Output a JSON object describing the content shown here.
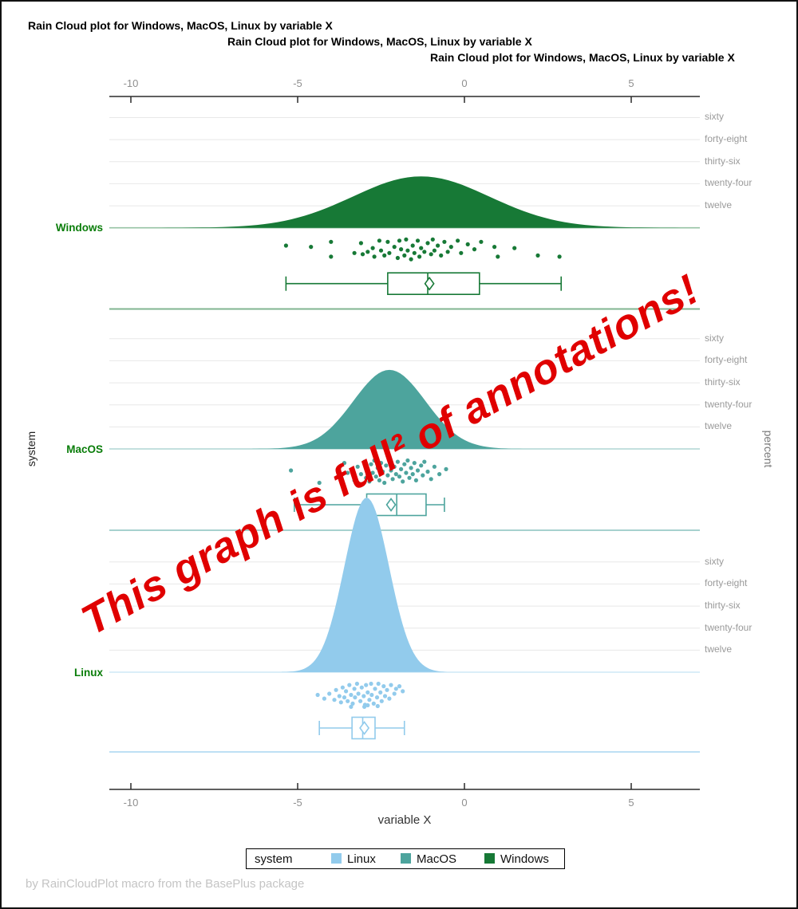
{
  "titles": [
    "Rain Cloud plot for Windows, MacOS, Linux by variable X",
    "Rain Cloud plot for Windows, MacOS, Linux by variable X",
    "Rain Cloud plot for Windows, MacOS, Linux by variable X"
  ],
  "annotation": {
    "text": "This graph is full² of annotations!",
    "color": "#e00000"
  },
  "axes": {
    "x_label": "variable X",
    "y_label_left": "system",
    "y_label_right": "percent"
  },
  "legend": {
    "title": "system",
    "items": [
      {
        "label": "Linux",
        "color": "#92cbec"
      },
      {
        "label": "MacOS",
        "color": "#4da49d"
      },
      {
        "label": "Windows",
        "color": "#177936"
      }
    ]
  },
  "footnote": "by RainCloudPlot macro from the BasePlus package",
  "chart_data": {
    "type": "raincloud",
    "title": "Rain Cloud plot for Windows, MacOS, Linux by variable X",
    "xlabel": "variable X",
    "ylabel_left": "system",
    "ylabel_right": "percent",
    "x_ticks": [
      -10,
      -5,
      0,
      5
    ],
    "x_range_visible": [
      -10.65,
      7.05
    ],
    "percent_gridlines": [
      12,
      24,
      36,
      48,
      60
    ],
    "percent_tick_labels": [
      "twelve",
      "twenty-four",
      "thirty-six",
      "forty-eight",
      "sixty"
    ],
    "grid_on": true,
    "legend_position": "bottom",
    "groups": [
      {
        "name": "Windows",
        "color": "#177936",
        "density": {
          "mean": -1.3,
          "sd": 2.05,
          "peak_percent": 28
        },
        "box": {
          "min": -5.35,
          "q1": -2.3,
          "median": -1.1,
          "q3": 0.45,
          "max": 2.9,
          "mean": -1.05
        },
        "points": [
          [
            -5.35,
            0.3
          ],
          [
            -4.6,
            0.35
          ],
          [
            -4.0,
            0.15
          ],
          [
            -4.0,
            0.75
          ],
          [
            -3.3,
            0.6
          ],
          [
            -3.1,
            0.2
          ],
          [
            -3.05,
            0.65
          ],
          [
            -2.9,
            0.55
          ],
          [
            -2.75,
            0.4
          ],
          [
            -2.7,
            0.75
          ],
          [
            -2.55,
            0.1
          ],
          [
            -2.5,
            0.5
          ],
          [
            -2.4,
            0.7
          ],
          [
            -2.3,
            0.15
          ],
          [
            -2.25,
            0.6
          ],
          [
            -2.1,
            0.35
          ],
          [
            -2.0,
            0.8
          ],
          [
            -1.95,
            0.1
          ],
          [
            -1.9,
            0.45
          ],
          [
            -1.8,
            0.7
          ],
          [
            -1.75,
            0.05
          ],
          [
            -1.7,
            0.5
          ],
          [
            -1.6,
            0.85
          ],
          [
            -1.55,
            0.3
          ],
          [
            -1.5,
            0.6
          ],
          [
            -1.4,
            0.1
          ],
          [
            -1.35,
            0.75
          ],
          [
            -1.3,
            0.4
          ],
          [
            -1.2,
            0.55
          ],
          [
            -1.1,
            0.2
          ],
          [
            -1.0,
            0.65
          ],
          [
            -0.95,
            0.05
          ],
          [
            -0.9,
            0.5
          ],
          [
            -0.8,
            0.3
          ],
          [
            -0.7,
            0.7
          ],
          [
            -0.6,
            0.15
          ],
          [
            -0.5,
            0.55
          ],
          [
            -0.4,
            0.35
          ],
          [
            -0.2,
            0.1
          ],
          [
            -0.1,
            0.6
          ],
          [
            0.1,
            0.25
          ],
          [
            0.3,
            0.45
          ],
          [
            0.5,
            0.15
          ],
          [
            0.9,
            0.35
          ],
          [
            1.0,
            0.75
          ],
          [
            1.5,
            0.4
          ],
          [
            2.2,
            0.7
          ],
          [
            2.85,
            0.75
          ]
        ]
      },
      {
        "name": "MacOS",
        "color": "#4da49d",
        "density": {
          "mean": -2.25,
          "sd": 1.08,
          "peak_percent": 43
        },
        "box": {
          "min": -5.1,
          "q1": -2.93,
          "median": -2.03,
          "q3": -1.15,
          "max": -0.6,
          "mean": -2.2
        },
        "points": [
          [
            -5.2,
            0.45
          ],
          [
            -4.35,
            0.95
          ],
          [
            -3.6,
            0.15
          ],
          [
            -3.5,
            0.55
          ],
          [
            -3.3,
            0.85
          ],
          [
            -3.2,
            0.3
          ],
          [
            -3.1,
            0.6
          ],
          [
            -3.0,
            0.1
          ],
          [
            -2.95,
            0.75
          ],
          [
            -2.9,
            0.4
          ],
          [
            -2.85,
            0.9
          ],
          [
            -2.8,
            0.2
          ],
          [
            -2.75,
            0.55
          ],
          [
            -2.7,
            0.05
          ],
          [
            -2.65,
            0.7
          ],
          [
            -2.6,
            0.35
          ],
          [
            -2.55,
            0.85
          ],
          [
            -2.5,
            0.15
          ],
          [
            -2.45,
            0.5
          ],
          [
            -2.4,
            0.95
          ],
          [
            -2.35,
            0.25
          ],
          [
            -2.3,
            0.65
          ],
          [
            -2.25,
            0.05
          ],
          [
            -2.2,
            0.45
          ],
          [
            -2.15,
            0.8
          ],
          [
            -2.1,
            0.3
          ],
          [
            -2.05,
            0.6
          ],
          [
            -2.0,
            0.1
          ],
          [
            -1.95,
            0.7
          ],
          [
            -1.9,
            0.4
          ],
          [
            -1.85,
            0.9
          ],
          [
            -1.8,
            0.2
          ],
          [
            -1.75,
            0.55
          ],
          [
            -1.7,
            0.05
          ],
          [
            -1.65,
            0.75
          ],
          [
            -1.6,
            0.35
          ],
          [
            -1.55,
            0.6
          ],
          [
            -1.5,
            0.15
          ],
          [
            -1.45,
            0.85
          ],
          [
            -1.4,
            0.45
          ],
          [
            -1.3,
            0.25
          ],
          [
            -1.25,
            0.65
          ],
          [
            -1.2,
            0.1
          ],
          [
            -1.1,
            0.5
          ],
          [
            -1.0,
            0.8
          ],
          [
            -0.9,
            0.3
          ],
          [
            -0.75,
            0.6
          ],
          [
            -0.55,
            0.4
          ]
        ]
      },
      {
        "name": "Linux",
        "color": "#92cbec",
        "density": {
          "mean": -2.93,
          "sd": 0.67,
          "peak_percent": 95
        },
        "box": {
          "min": -4.35,
          "q1": -3.37,
          "median": -3.05,
          "q3": -2.68,
          "max": -1.8,
          "mean": -3.0
        },
        "points": [
          [
            -4.4,
            0.5
          ],
          [
            -4.2,
            0.65
          ],
          [
            -4.05,
            0.45
          ],
          [
            -3.9,
            0.7
          ],
          [
            -3.85,
            0.3
          ],
          [
            -3.75,
            0.55
          ],
          [
            -3.7,
            0.8
          ],
          [
            -3.65,
            0.2
          ],
          [
            -3.6,
            0.6
          ],
          [
            -3.55,
            0.35
          ],
          [
            -3.5,
            0.75
          ],
          [
            -3.45,
            0.1
          ],
          [
            -3.4,
            0.5
          ],
          [
            -3.35,
            0.85
          ],
          [
            -3.3,
            0.25
          ],
          [
            -3.28,
            0.6
          ],
          [
            -3.22,
            0.05
          ],
          [
            -3.18,
            0.45
          ],
          [
            -3.12,
            0.75
          ],
          [
            -3.08,
            0.2
          ],
          [
            -3.02,
            0.55
          ],
          [
            -2.98,
            0.9
          ],
          [
            -2.95,
            0.1
          ],
          [
            -2.9,
            0.4
          ],
          [
            -2.85,
            0.7
          ],
          [
            -2.8,
            0.05
          ],
          [
            -2.78,
            0.5
          ],
          [
            -2.72,
            0.85
          ],
          [
            -2.68,
            0.25
          ],
          [
            -2.62,
            0.6
          ],
          [
            -2.58,
            0.05
          ],
          [
            -2.52,
            0.4
          ],
          [
            -2.48,
            0.75
          ],
          [
            -2.42,
            0.15
          ],
          [
            -2.38,
            0.55
          ],
          [
            -2.32,
            0.3
          ],
          [
            -2.25,
            0.65
          ],
          [
            -2.2,
            0.1
          ],
          [
            -2.1,
            0.45
          ],
          [
            -2.05,
            0.25
          ],
          [
            -1.95,
            0.15
          ],
          [
            -1.85,
            0.35
          ],
          [
            -2.6,
            0.95
          ],
          [
            -3.0,
            0.98
          ],
          [
            -3.4,
            0.98
          ],
          [
            -2.9,
            0.92
          ]
        ]
      }
    ]
  }
}
